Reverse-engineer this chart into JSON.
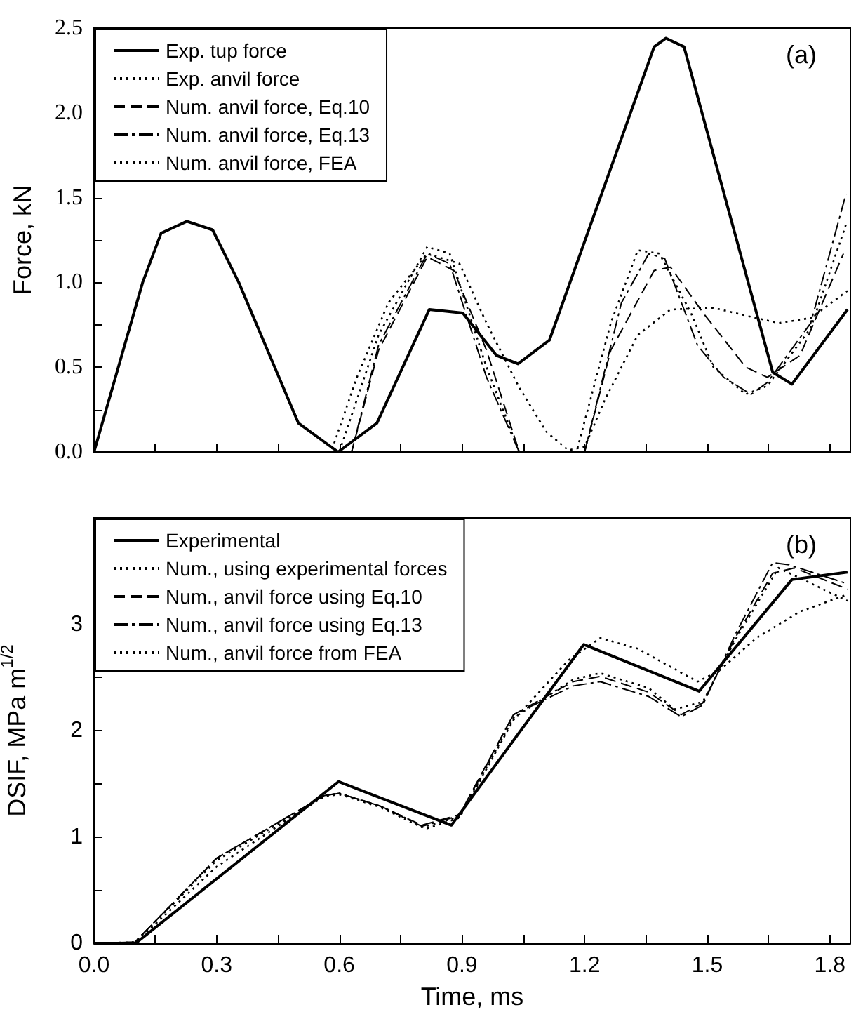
{
  "chart_data": [
    {
      "type": "line",
      "ylabel": "Force, kN",
      "annotations": [
        "(a)"
      ],
      "legend": "top left",
      "tick_labels": "y",
      "xlim": [
        0,
        1.85
      ],
      "xticks": [
        0,
        {
          "value": 0.15,
          "label": null
        },
        0.3,
        {
          "value": 0.45,
          "label": null
        },
        0.6,
        {
          "value": 0.75,
          "label": null
        },
        0.9,
        {
          "value": 1.05,
          "label": null
        },
        1.2,
        {
          "value": 1.35,
          "label": null
        },
        1.5,
        {
          "value": 1.65,
          "label": null
        },
        1.8
      ],
      "ylim": [
        0,
        2.5
      ],
      "yticks": [
        {
          "value": 0,
          "label": "0.0"
        },
        {
          "value": 0.25,
          "label": null
        },
        {
          "value": 0.5,
          "label": "0.5"
        },
        {
          "value": 0.75,
          "label": null
        },
        {
          "value": 1,
          "label": "1.0"
        },
        {
          "value": 1.25,
          "label": null
        },
        {
          "value": 1.5,
          "label": "1.5"
        },
        {
          "value": 1.75,
          "label": null
        },
        {
          "value": 2,
          "label": "2.0"
        },
        {
          "value": 2.25,
          "label": null
        },
        {
          "value": 2.5,
          "label": "2.5"
        }
      ],
      "series": [
        {
          "name": "Exp. tup force",
          "color": "#000000",
          "line_style": "solid",
          "x": [
            0,
            0.119,
            0.164,
            0.227,
            0.29,
            0.354,
            0.5,
            0.597,
            0.692,
            0.82,
            0.902,
            0.984,
            1.037,
            1.114,
            1.37,
            1.399,
            1.443,
            1.66,
            1.707,
            1.843
          ],
          "values": [
            0,
            1.0,
            1.29,
            1.36,
            1.31,
            1.0,
            0.17,
            0,
            0.17,
            0.84,
            0.82,
            0.57,
            0.52,
            0.66,
            2.39,
            2.44,
            2.39,
            0.47,
            0.4,
            0.84
          ]
        },
        {
          "name": "Exp. anvil force",
          "color": "#000000",
          "line_style": "dotted",
          "x": [
            0,
            0.58,
            0.643,
            0.72,
            0.815,
            0.894,
            0.96,
            1.04,
            1.106,
            1.16,
            1.2,
            1.25,
            1.33,
            1.41,
            1.515,
            1.62,
            1.674,
            1.753,
            1.843
          ],
          "values": [
            0,
            0,
            0.44,
            0.88,
            1.17,
            1.11,
            0.76,
            0.38,
            0.12,
            0.01,
            0.03,
            0.31,
            0.69,
            0.84,
            0.85,
            0.79,
            0.76,
            0.79,
            0.95
          ]
        },
        {
          "name": "Num. anvil force, Eq.10",
          "color": "#000000",
          "line_style": "dashed",
          "x": [
            0,
            0.63,
            0.696,
            0.815,
            0.88,
            0.96,
            1.04,
            1.2,
            1.264,
            1.37,
            1.41,
            1.49,
            1.594,
            1.647,
            1.727,
            1.833
          ],
          "values": [
            0,
            0,
            0.6,
            1.15,
            1.07,
            0.6,
            0,
            0,
            0.6,
            1.07,
            1.09,
            0.82,
            0.5,
            0.44,
            0.57,
            1.17
          ]
        },
        {
          "name": "Num. anvil force, Eq.13",
          "color": "#000000",
          "line_style": "dashdot",
          "x": [
            0,
            0.63,
            0.696,
            0.815,
            0.87,
            0.96,
            1.04,
            1.2,
            1.29,
            1.357,
            1.396,
            1.476,
            1.54,
            1.607,
            1.647,
            1.753,
            1.839
          ],
          "values": [
            0,
            0,
            0.63,
            1.17,
            1.11,
            0.44,
            0,
            0,
            0.88,
            1.17,
            1.14,
            0.63,
            0.44,
            0.34,
            0.41,
            0.76,
            1.52
          ]
        },
        {
          "name": "Num. anvil force, FEA",
          "color": "#000000",
          "line_style": "dotted",
          "x": [
            0,
            0.6,
            0.696,
            0.815,
            0.87,
            0.96,
            1.04,
            1.18,
            1.264,
            1.33,
            1.383,
            1.46,
            1.515,
            1.594,
            1.647,
            1.753,
            1.839
          ],
          "values": [
            0,
            0,
            0.69,
            1.21,
            1.17,
            0.5,
            0,
            0,
            0.76,
            1.19,
            1.17,
            0.82,
            0.5,
            0.34,
            0.39,
            0.73,
            1.34
          ]
        }
      ]
    },
    {
      "type": "line",
      "xlabel": "Time, ms",
      "ylabel": "DSIF, MPa m$^{1/2}$",
      "annotations": [
        "(b)"
      ],
      "legend": "top left",
      "xlim": [
        0,
        1.85
      ],
      "xticks": [
        {
          "value": 0,
          "label": "0.0"
        },
        {
          "value": 0.15,
          "label": null
        },
        {
          "value": 0.3,
          "label": "0.3"
        },
        {
          "value": 0.45,
          "label": null
        },
        {
          "value": 0.6,
          "label": "0.6"
        },
        {
          "value": 0.75,
          "label": null
        },
        {
          "value": 0.9,
          "label": "0.9"
        },
        {
          "value": 1.05,
          "label": null
        },
        {
          "value": 1.2,
          "label": "1.2"
        },
        {
          "value": 1.35,
          "label": null
        },
        {
          "value": 1.5,
          "label": "1.5"
        },
        {
          "value": 1.65,
          "label": null
        },
        {
          "value": 1.8,
          "label": "1.8"
        }
      ],
      "ylim": [
        0,
        4
      ],
      "yticks": [
        0,
        {
          "value": 0.5,
          "label": null
        },
        1,
        {
          "value": 1.5,
          "label": null
        },
        2,
        {
          "value": 2.5,
          "label": null
        },
        3,
        {
          "value": 3.5,
          "label": null
        }
      ],
      "series": [
        {
          "name": "Experimental",
          "color": "#000000",
          "line_style": "solid",
          "x": [
            0,
            0.102,
            0.598,
            0.874,
            1.198,
            1.48,
            1.707,
            1.843
          ],
          "values": [
            0,
            0,
            1.52,
            1.11,
            2.81,
            2.37,
            3.42,
            3.49
          ]
        },
        {
          "name": "Num., using experimental forces",
          "color": "#000000",
          "line_style": "dotted",
          "x": [
            0,
            0.1,
            0.3,
            0.564,
            0.6,
            0.7,
            0.815,
            0.894,
            1.026,
            1.16,
            1.238,
            1.33,
            1.476,
            1.528,
            1.62,
            1.727,
            1.843
          ],
          "values": [
            0,
            0,
            0.72,
            1.39,
            1.41,
            1.29,
            1.08,
            1.18,
            2.1,
            2.66,
            2.87,
            2.77,
            2.46,
            2.56,
            2.87,
            3.12,
            3.28
          ]
        },
        {
          "name": "Num., anvil force using Eq.10",
          "color": "#000000",
          "line_style": "dashed",
          "x": [
            0,
            0.1,
            0.3,
            0.564,
            0.6,
            0.7,
            0.802,
            0.894,
            1.026,
            1.172,
            1.238,
            1.357,
            1.436,
            1.489,
            1.568,
            1.66,
            1.713,
            1.843
          ],
          "values": [
            0,
            0.01,
            0.8,
            1.39,
            1.41,
            1.29,
            1.11,
            1.21,
            2.15,
            2.46,
            2.51,
            2.36,
            2.15,
            2.26,
            2.87,
            3.48,
            3.53,
            3.33
          ]
        },
        {
          "name": "Num., anvil force using Eq.13",
          "color": "#000000",
          "line_style": "dashdot",
          "x": [
            0,
            0.1,
            0.3,
            0.564,
            0.6,
            0.7,
            0.802,
            0.894,
            1.026,
            1.172,
            1.238,
            1.357,
            1.436,
            1.489,
            1.568,
            1.66,
            1.7,
            1.843
          ],
          "values": [
            0,
            0.01,
            0.8,
            1.39,
            1.41,
            1.29,
            1.1,
            1.2,
            2.15,
            2.42,
            2.46,
            2.32,
            2.13,
            2.24,
            2.9,
            3.58,
            3.56,
            3.38
          ]
        },
        {
          "name": "Num., anvil force from FEA",
          "color": "#000000",
          "line_style": "dotted",
          "x": [
            0,
            0.1,
            0.3,
            0.564,
            0.6,
            0.7,
            0.802,
            0.894,
            1.026,
            1.172,
            1.238,
            1.357,
            1.42,
            1.489,
            1.568,
            1.674,
            1.843
          ],
          "values": [
            0,
            0.01,
            0.78,
            1.38,
            1.4,
            1.28,
            1.09,
            1.19,
            2.12,
            2.48,
            2.54,
            2.4,
            2.2,
            2.27,
            2.85,
            3.53,
            3.22
          ]
        }
      ]
    }
  ]
}
